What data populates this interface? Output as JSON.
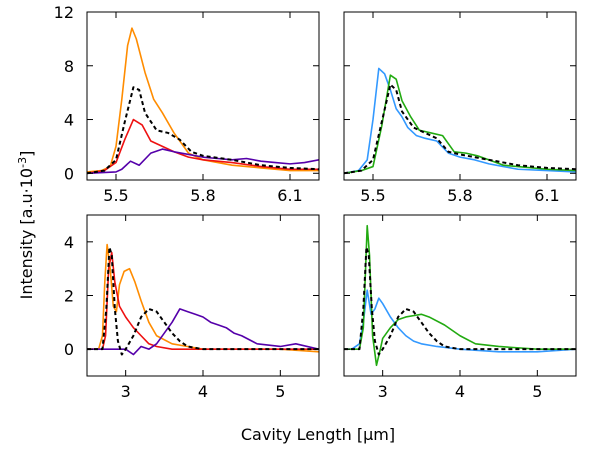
{
  "chart_data": {
    "type": "line",
    "xlabel": "Cavity Length [µm]",
    "ylabel": "Intensity [a.u·10",
    "ylabel_sup": "-3",
    "ylabel_end": "]",
    "colors": {
      "orange": "#ff8c00",
      "red": "#ee1111",
      "purple": "#5500aa",
      "blue": "#3399ff",
      "green": "#22aa11",
      "black": "#000000"
    },
    "panels": [
      {
        "id": "top-left",
        "xlim": [
          5.4,
          6.2
        ],
        "ylim": [
          -0.5,
          12
        ],
        "xticks": [
          "5.5",
          "5.8",
          "6.1"
        ],
        "xtick_values": [
          5.5,
          5.8,
          6.1
        ],
        "yticks": [
          "0",
          "4",
          "8",
          "12"
        ],
        "ytick_values": [
          0,
          4,
          8,
          12
        ],
        "show_yticklabels": true,
        "series": [
          {
            "color": "orange",
            "dashed": false,
            "x": [
              5.4,
              5.45,
              5.48,
              5.5,
              5.52,
              5.54,
              5.555,
              5.57,
              5.6,
              5.63,
              5.66,
              5.7,
              5.75,
              5.8,
              5.9,
              6.0,
              6.1,
              6.2
            ],
            "y": [
              0.1,
              0.2,
              0.5,
              2.0,
              5.5,
              9.5,
              10.8,
              10.0,
              7.5,
              5.5,
              4.5,
              3.0,
              1.5,
              1.0,
              0.6,
              0.4,
              0.2,
              0.2
            ]
          },
          {
            "color": "red",
            "dashed": false,
            "x": [
              5.4,
              5.46,
              5.5,
              5.53,
              5.56,
              5.59,
              5.62,
              5.66,
              5.7,
              5.75,
              5.8,
              5.9,
              6.0,
              6.1,
              6.2
            ],
            "y": [
              0.0,
              0.2,
              0.8,
              2.5,
              4.0,
              3.6,
              2.4,
              2.0,
              1.6,
              1.2,
              1.0,
              0.8,
              0.5,
              0.3,
              0.3
            ]
          },
          {
            "color": "purple",
            "dashed": false,
            "x": [
              5.4,
              5.5,
              5.52,
              5.55,
              5.58,
              5.62,
              5.66,
              5.7,
              5.75,
              5.8,
              5.85,
              5.9,
              5.95,
              6.0,
              6.05,
              6.1,
              6.15,
              6.2
            ],
            "y": [
              0.0,
              0.1,
              0.3,
              0.9,
              0.6,
              1.5,
              1.8,
              1.6,
              1.4,
              1.2,
              1.1,
              1.0,
              1.1,
              0.9,
              0.8,
              0.7,
              0.8,
              1.0
            ]
          },
          {
            "color": "black",
            "dashed": true,
            "x": [
              5.4,
              5.46,
              5.5,
              5.53,
              5.56,
              5.58,
              5.6,
              5.64,
              5.68,
              5.72,
              5.76,
              5.8,
              5.9,
              6.0,
              6.1,
              6.2
            ],
            "y": [
              0.0,
              0.2,
              1.0,
              3.8,
              6.4,
              6.2,
              4.5,
              3.2,
              3.0,
              2.5,
              1.6,
              1.3,
              1.0,
              0.6,
              0.4,
              0.3
            ]
          }
        ]
      },
      {
        "id": "top-right",
        "xlim": [
          5.4,
          6.2
        ],
        "ylim": [
          -0.5,
          12
        ],
        "xticks": [
          "5.5",
          "5.8",
          "6.1"
        ],
        "xtick_values": [
          5.5,
          5.8,
          6.1
        ],
        "yticks": [
          "0",
          "4",
          "8",
          "12"
        ],
        "ytick_values": [
          0,
          4,
          8,
          12
        ],
        "show_yticklabels": false,
        "series": [
          {
            "color": "blue",
            "dashed": false,
            "x": [
              5.4,
              5.45,
              5.48,
              5.5,
              5.52,
              5.54,
              5.56,
              5.58,
              5.6,
              5.62,
              5.65,
              5.68,
              5.72,
              5.76,
              5.8,
              5.85,
              5.9,
              5.95,
              6.0,
              6.1,
              6.2
            ],
            "y": [
              0.0,
              0.2,
              1.0,
              4.0,
              7.8,
              7.4,
              6.2,
              4.8,
              4.2,
              3.4,
              2.8,
              2.6,
              2.4,
              1.5,
              1.2,
              1.0,
              0.7,
              0.5,
              0.3,
              0.2,
              0.1
            ]
          },
          {
            "color": "green",
            "dashed": false,
            "x": [
              5.4,
              5.46,
              5.5,
              5.53,
              5.56,
              5.58,
              5.6,
              5.63,
              5.66,
              5.7,
              5.74,
              5.78,
              5.82,
              5.86,
              5.9,
              5.95,
              6.0,
              6.1,
              6.2
            ],
            "y": [
              0.0,
              0.2,
              0.5,
              3.5,
              7.3,
              7.0,
              5.4,
              4.2,
              3.2,
              3.0,
              2.8,
              1.6,
              1.5,
              1.3,
              1.0,
              0.6,
              0.5,
              0.3,
              0.2
            ]
          },
          {
            "color": "black",
            "dashed": true,
            "x": [
              5.4,
              5.46,
              5.5,
              5.53,
              5.56,
              5.58,
              5.6,
              5.64,
              5.68,
              5.72,
              5.76,
              5.8,
              5.85,
              5.9,
              6.0,
              6.1,
              6.2
            ],
            "y": [
              0.0,
              0.2,
              1.0,
              3.8,
              6.6,
              6.2,
              4.6,
              3.4,
              3.0,
              2.6,
              1.6,
              1.4,
              1.2,
              1.0,
              0.6,
              0.4,
              0.3
            ]
          }
        ]
      },
      {
        "id": "bottom-left",
        "xlim": [
          2.5,
          5.5
        ],
        "ylim": [
          -1,
          5
        ],
        "xticks": [
          "3",
          "4",
          "5"
        ],
        "xtick_values": [
          3,
          4,
          5
        ],
        "yticks": [
          "0",
          "2",
          "4"
        ],
        "ytick_values": [
          0,
          2,
          4
        ],
        "show_yticklabels": true,
        "series": [
          {
            "color": "orange",
            "dashed": false,
            "x": [
              2.5,
              2.65,
              2.7,
              2.73,
              2.76,
              2.8,
              2.84,
              2.88,
              2.92,
              2.98,
              3.05,
              3.12,
              3.2,
              3.3,
              3.4,
              3.6,
              3.8,
              4.0,
              4.5,
              5.0,
              5.5
            ],
            "y": [
              0.0,
              0.0,
              0.5,
              2.5,
              3.9,
              3.0,
              1.6,
              1.4,
              2.4,
              2.9,
              3.0,
              2.5,
              1.8,
              1.0,
              0.5,
              0.2,
              0.1,
              0.0,
              0.0,
              0.0,
              -0.1
            ]
          },
          {
            "color": "red",
            "dashed": false,
            "x": [
              2.5,
              2.7,
              2.74,
              2.78,
              2.82,
              2.86,
              2.92,
              3.0,
              3.1,
              3.2,
              3.3,
              3.4,
              3.6,
              4.0,
              4.5,
              5.0,
              5.5
            ],
            "y": [
              0.0,
              0.0,
              0.5,
              3.0,
              3.6,
              2.5,
              1.6,
              1.2,
              0.8,
              0.5,
              0.2,
              0.1,
              0.0,
              0.0,
              0.0,
              0.0,
              0.0
            ]
          },
          {
            "color": "purple",
            "dashed": false,
            "x": [
              2.5,
              3.0,
              3.1,
              3.2,
              3.3,
              3.4,
              3.5,
              3.6,
              3.7,
              3.8,
              3.9,
              4.0,
              4.1,
              4.2,
              4.3,
              4.4,
              4.5,
              4.7,
              5.0,
              5.2,
              5.5
            ],
            "y": [
              0.0,
              0.0,
              -0.2,
              0.1,
              0.0,
              0.2,
              0.6,
              1.0,
              1.5,
              1.4,
              1.3,
              1.2,
              1.0,
              0.9,
              0.8,
              0.6,
              0.5,
              0.2,
              0.1,
              0.2,
              0.0
            ]
          },
          {
            "color": "black",
            "dashed": true,
            "x": [
              2.5,
              2.7,
              2.75,
              2.79,
              2.82,
              2.86,
              2.9,
              2.95,
              3.0,
              3.1,
              3.2,
              3.3,
              3.4,
              3.5,
              3.6,
              3.7,
              3.8,
              4.0,
              4.5,
              5.0,
              5.5
            ],
            "y": [
              0.0,
              0.0,
              1.5,
              3.8,
              3.5,
              1.5,
              0.3,
              -0.2,
              0.0,
              0.5,
              1.2,
              1.5,
              1.4,
              1.0,
              0.6,
              0.3,
              0.1,
              0.0,
              0.0,
              0.0,
              0.0
            ]
          }
        ]
      },
      {
        "id": "bottom-right",
        "xlim": [
          2.5,
          5.5
        ],
        "ylim": [
          -1,
          5
        ],
        "xticks": [
          "3",
          "4",
          "5"
        ],
        "xtick_values": [
          3,
          4,
          5
        ],
        "yticks": [
          "0",
          "2",
          "4"
        ],
        "ytick_values": [
          0,
          2,
          4
        ],
        "show_yticklabels": false,
        "series": [
          {
            "color": "blue",
            "dashed": false,
            "x": [
              2.5,
              2.6,
              2.7,
              2.75,
              2.8,
              2.85,
              2.9,
              2.95,
              3.0,
              3.1,
              3.2,
              3.3,
              3.4,
              3.5,
              3.7,
              4.0,
              4.5,
              5.0,
              5.5
            ],
            "y": [
              0.0,
              0.0,
              0.2,
              1.0,
              2.2,
              1.3,
              1.5,
              1.9,
              1.7,
              1.2,
              0.8,
              0.5,
              0.3,
              0.2,
              0.1,
              0.0,
              -0.1,
              -0.1,
              0.0
            ]
          },
          {
            "color": "green",
            "dashed": false,
            "x": [
              2.5,
              2.7,
              2.75,
              2.8,
              2.83,
              2.87,
              2.92,
              2.97,
              3.0,
              3.1,
              3.2,
              3.3,
              3.4,
              3.5,
              3.6,
              3.8,
              4.0,
              4.2,
              4.5,
              5.0,
              5.5
            ],
            "y": [
              0.0,
              0.0,
              0.8,
              4.6,
              3.5,
              0.5,
              -0.6,
              0.0,
              0.4,
              0.8,
              1.1,
              1.2,
              1.25,
              1.3,
              1.2,
              0.9,
              0.5,
              0.2,
              0.1,
              0.0,
              0.0
            ]
          },
          {
            "color": "black",
            "dashed": true,
            "x": [
              2.5,
              2.7,
              2.75,
              2.79,
              2.82,
              2.86,
              2.9,
              2.95,
              3.0,
              3.1,
              3.2,
              3.3,
              3.4,
              3.5,
              3.6,
              3.7,
              3.8,
              4.0,
              4.5,
              5.0,
              5.5
            ],
            "y": [
              0.0,
              0.0,
              1.5,
              3.8,
              3.5,
              1.5,
              0.3,
              -0.2,
              0.0,
              0.5,
              1.2,
              1.5,
              1.4,
              1.0,
              0.6,
              0.3,
              0.1,
              0.0,
              0.0,
              0.0,
              0.0
            ]
          }
        ]
      }
    ]
  }
}
